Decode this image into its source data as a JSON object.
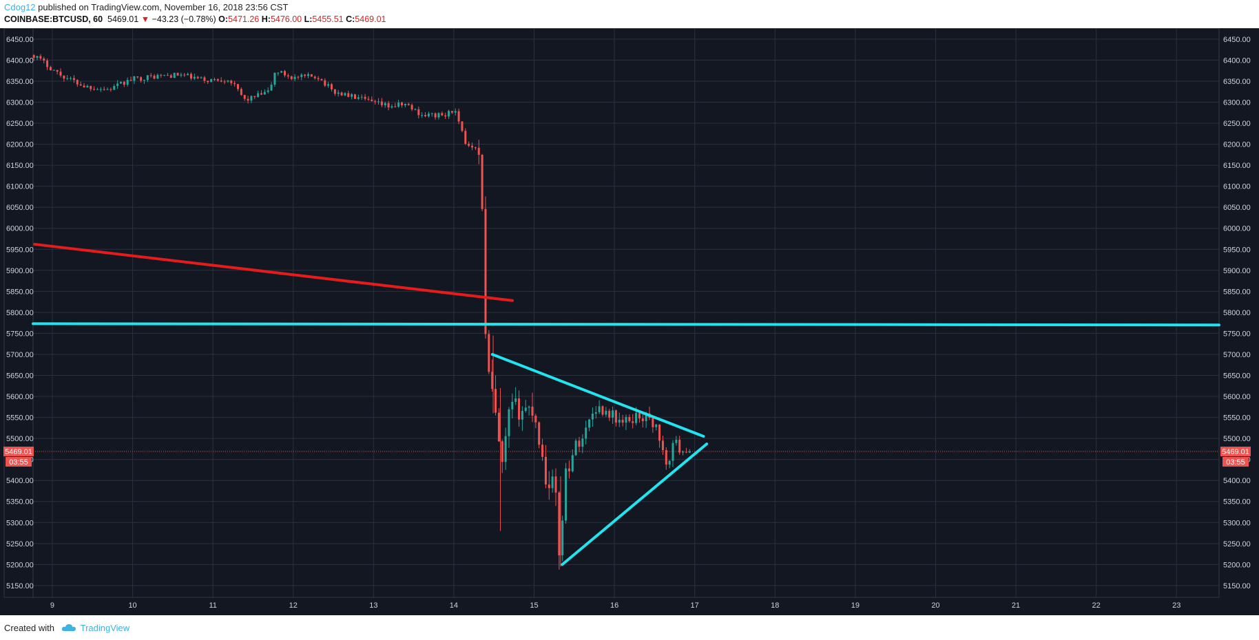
{
  "header": {
    "author": "Cdog12",
    "published_text": " published on TradingView.com, November 16, 2018 23:56 CST",
    "symbol": "COINBASE:BTCUSD, 60",
    "last": "5469.01",
    "change": "−43.23 (−0.78%)",
    "O_label": "O:",
    "O": "5471.26",
    "H_label": "H:",
    "H": "5476.00",
    "L_label": "L:",
    "L": "5455.51",
    "C_label": "C:",
    "C": "5469.01"
  },
  "footer": {
    "created_with": "Created with",
    "brand": "TradingView"
  },
  "price_tag": {
    "price": "5469.01",
    "countdown": "03:55"
  },
  "colors": {
    "background": "#131722",
    "grid": "#2b3040",
    "up": "#26a69a",
    "down": "#ef5350",
    "red_line": "#e51c1c",
    "cyan_line": "#22e3ee",
    "axis_text": "#d1d4dc"
  },
  "chart_data": {
    "type": "candlestick",
    "interval": "60",
    "symbol": "COINBASE:BTCUSD",
    "x_ticks": [
      "9",
      "10",
      "11",
      "12",
      "13",
      "14",
      "15",
      "16",
      "17",
      "18",
      "19",
      "20",
      "21",
      "22",
      "23"
    ],
    "xlim": [
      8.76,
      23.53
    ],
    "ylim": [
      5122,
      6476
    ],
    "y_ticks": [
      6450,
      6400,
      6350,
      6300,
      6250,
      6200,
      6150,
      6100,
      6050,
      6000,
      5950,
      5900,
      5850,
      5800,
      5750,
      5700,
      5650,
      5600,
      5550,
      5500,
      5450,
      5400,
      5350,
      5300,
      5250,
      5200,
      5150
    ],
    "last_price": 5469.01,
    "grid": true,
    "anchors": [
      [
        8.77,
        6412
      ],
      [
        9.1,
        6365
      ],
      [
        9.4,
        6338
      ],
      [
        9.7,
        6330
      ],
      [
        10.0,
        6355
      ],
      [
        10.3,
        6362
      ],
      [
        10.6,
        6365
      ],
      [
        10.9,
        6352
      ],
      [
        11.2,
        6355
      ],
      [
        11.4,
        6305
      ],
      [
        11.7,
        6325
      ],
      [
        11.78,
        6375
      ],
      [
        12.0,
        6358
      ],
      [
        12.3,
        6362
      ],
      [
        12.5,
        6325
      ],
      [
        12.8,
        6310
      ],
      [
        13.0,
        6298
      ],
      [
        13.2,
        6290
      ],
      [
        13.4,
        6295
      ],
      [
        13.6,
        6270
      ],
      [
        13.9,
        6268
      ],
      [
        14.0,
        6285
      ],
      [
        14.15,
        6200
      ],
      [
        14.3,
        6195
      ],
      [
        14.36,
        6045
      ],
      [
        14.4,
        5690
      ],
      [
        14.5,
        5580
      ],
      [
        14.6,
        5420
      ],
      [
        14.7,
        5570
      ],
      [
        15.0,
        5570
      ],
      [
        15.15,
        5400
      ],
      [
        15.25,
        5400
      ],
      [
        15.32,
        5210
      ],
      [
        15.38,
        5410
      ],
      [
        15.5,
        5480
      ],
      [
        15.6,
        5500
      ],
      [
        15.75,
        5575
      ],
      [
        15.95,
        5560
      ],
      [
        16.1,
        5535
      ],
      [
        16.3,
        5555
      ],
      [
        16.45,
        5545
      ],
      [
        16.55,
        5515
      ],
      [
        16.65,
        5420
      ],
      [
        16.72,
        5490
      ],
      [
        16.82,
        5478
      ],
      [
        16.95,
        5469
      ]
    ],
    "drawings": [
      {
        "type": "trendline",
        "color": "red",
        "from": [
          8.78,
          5962
        ],
        "to": [
          14.73,
          5828
        ]
      },
      {
        "type": "horizontal_line",
        "color": "cyan",
        "from": [
          8.76,
          5773
        ],
        "to": [
          23.53,
          5770
        ]
      },
      {
        "type": "trendline",
        "color": "cyan",
        "from": [
          14.48,
          5700
        ],
        "to": [
          17.11,
          5505
        ]
      },
      {
        "type": "trendline",
        "color": "cyan",
        "from": [
          15.35,
          5200
        ],
        "to": [
          17.15,
          5487
        ]
      }
    ]
  }
}
